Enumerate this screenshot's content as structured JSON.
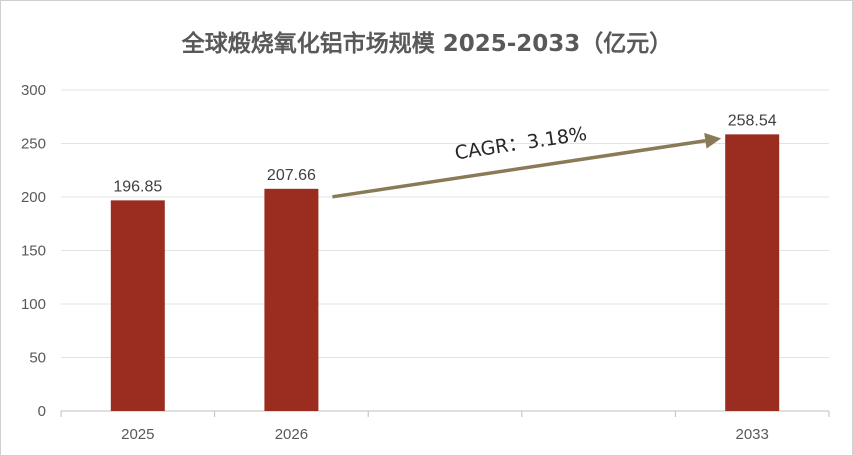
{
  "chart_data": {
    "type": "bar",
    "title": "全球煅烧氧化铝市场规模 2025-2033（亿元）",
    "categories": [
      "2025",
      "2026",
      "",
      "",
      "2033"
    ],
    "values": [
      196.85,
      207.66,
      null,
      null,
      258.54
    ],
    "data_labels": [
      "196.85",
      "207.66",
      "",
      "",
      "258.54"
    ],
    "ylim": [
      0,
      300
    ],
    "yticks": [
      0,
      50,
      100,
      150,
      200,
      250,
      300
    ],
    "grid": true,
    "bar_color": "#9b2d20",
    "arrow_color": "#8b7a57",
    "annotation": "CAGR：3.18%"
  }
}
